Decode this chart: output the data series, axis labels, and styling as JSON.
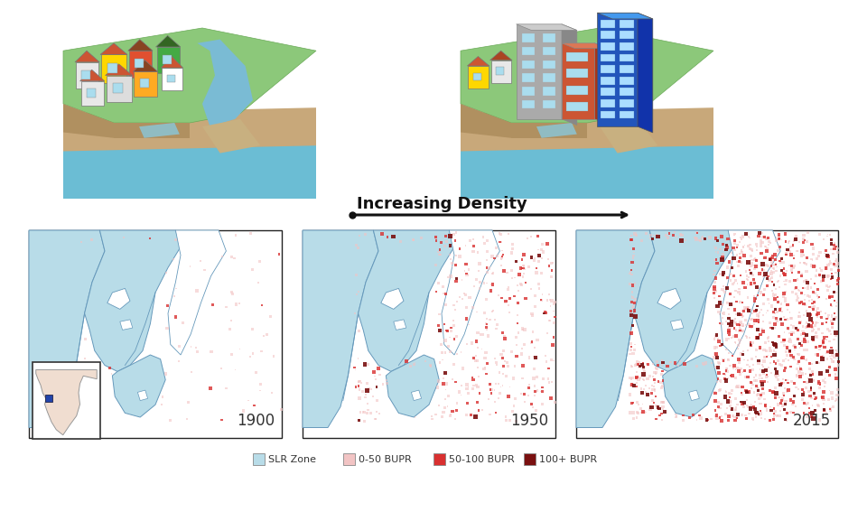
{
  "title": "",
  "arrow_text": "Increasing Density",
  "years": [
    "1900",
    "1950",
    "2015"
  ],
  "legend_items": [
    {
      "label": "SLR Zone",
      "color": "#b8dce8"
    },
    {
      "label": "0-50 BUPR",
      "color": "#f2c4c4"
    },
    {
      "label": "50-100 BUPR",
      "color": "#d93030"
    },
    {
      "label": "100+ BUPR",
      "color": "#7a1010"
    }
  ],
  "bg_color": "#ffffff",
  "map_border": "#222222",
  "arrow_color": "#111111",
  "year_label_color": "#333333",
  "year_label_fontsize": 12,
  "arrow_fontsize": 13,
  "legend_fontsize": 8,
  "slr_color": "#b8dce8",
  "slr_border": "#6699bb",
  "density_low": "#f2c4c4",
  "density_med": "#d93030",
  "density_high": "#7a1010",
  "land_color": "#ffffff",
  "water_color": "#7fc8e0",
  "ground_color": "#c8a87a",
  "green_color": "#7ab87a"
}
